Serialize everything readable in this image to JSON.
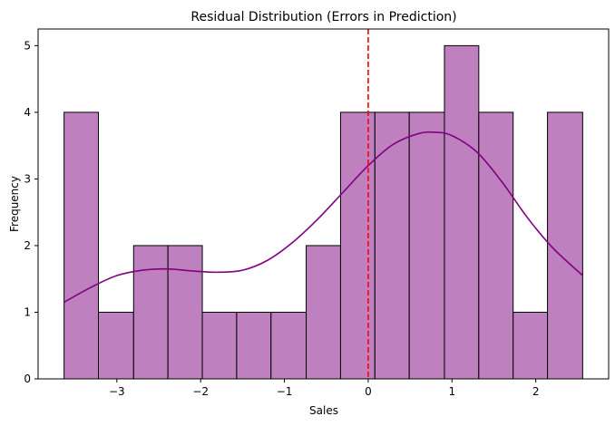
{
  "chart_data": {
    "type": "bar",
    "title": "Residual Distribution (Errors in Prediction)",
    "xlabel": "Sales",
    "ylabel": "Frequency",
    "bins": [
      {
        "x0": -3.63,
        "x1": -3.22,
        "count": 4
      },
      {
        "x0": -3.22,
        "x1": -2.8,
        "count": 1
      },
      {
        "x0": -2.8,
        "x1": -2.39,
        "count": 2
      },
      {
        "x0": -2.39,
        "x1": -1.98,
        "count": 2
      },
      {
        "x0": -1.98,
        "x1": -1.57,
        "count": 1
      },
      {
        "x0": -1.57,
        "x1": -1.16,
        "count": 1
      },
      {
        "x0": -1.16,
        "x1": -0.74,
        "count": 1
      },
      {
        "x0": -0.74,
        "x1": -0.33,
        "count": 2
      },
      {
        "x0": -0.33,
        "x1": 0.08,
        "count": 4
      },
      {
        "x0": 0.08,
        "x1": 0.49,
        "count": 4
      },
      {
        "x0": 0.49,
        "x1": 0.91,
        "count": 4
      },
      {
        "x0": 0.91,
        "x1": 1.32,
        "count": 5
      },
      {
        "x0": 1.32,
        "x1": 1.73,
        "count": 4
      },
      {
        "x0": 1.73,
        "x1": 2.14,
        "count": 1
      },
      {
        "x0": 2.14,
        "x1": 2.56,
        "count": 4
      }
    ],
    "kde": {
      "x": [
        -3.63,
        -3.3,
        -3.0,
        -2.7,
        -2.4,
        -2.1,
        -1.8,
        -1.5,
        -1.2,
        -0.9,
        -0.6,
        -0.3,
        0.0,
        0.3,
        0.6,
        0.8,
        1.0,
        1.3,
        1.6,
        1.9,
        2.2,
        2.56
      ],
      "y": [
        1.15,
        1.38,
        1.55,
        1.63,
        1.65,
        1.62,
        1.6,
        1.63,
        1.78,
        2.05,
        2.4,
        2.8,
        3.2,
        3.52,
        3.68,
        3.7,
        3.65,
        3.4,
        2.95,
        2.42,
        1.97,
        1.55
      ]
    },
    "vline": {
      "x": 0,
      "color": "#ff0000",
      "style": "dashed"
    },
    "xlim": [
      -3.94,
      2.87
    ],
    "ylim": [
      0,
      5.25
    ],
    "xticks": [
      -3,
      -2,
      -1,
      0,
      1,
      2
    ],
    "xtick_labels": [
      "−3",
      "−2",
      "−1",
      "0",
      "1",
      "2"
    ],
    "yticks": [
      0,
      1,
      2,
      3,
      4,
      5
    ],
    "ytick_labels": [
      "0",
      "1",
      "2",
      "3",
      "4",
      "5"
    ],
    "grid": false,
    "colors": {
      "bar_fill": "#bf80bf",
      "bar_edge": "#000000",
      "kde_line": "#800080",
      "vline": "#ff0000"
    }
  }
}
